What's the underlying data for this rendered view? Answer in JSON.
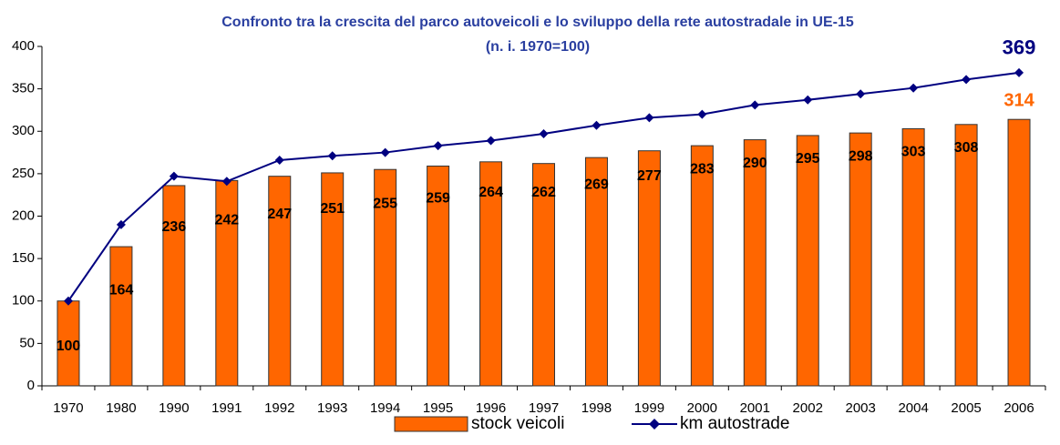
{
  "chart_data": {
    "type": "bar-line",
    "title": "Confronto tra la crescita del parco autoveicoli e lo sviluppo della rete autostradale in UE-15",
    "subtitle": "(n. i. 1970=100)",
    "categories": [
      "1970",
      "1980",
      "1990",
      "1991",
      "1992",
      "1993",
      "1994",
      "1995",
      "1996",
      "1997",
      "1998",
      "1999",
      "2000",
      "2001",
      "2002",
      "2003",
      "2004",
      "2005",
      "2006"
    ],
    "series": [
      {
        "name": "stock veicoli",
        "type": "bar",
        "color": "#ff6600",
        "values": [
          100,
          164,
          236,
          242,
          247,
          251,
          255,
          259,
          264,
          262,
          269,
          277,
          283,
          290,
          295,
          298,
          303,
          308,
          314
        ]
      },
      {
        "name": "km autostrade",
        "type": "line",
        "color": "#000080",
        "values": [
          100,
          190,
          247,
          241,
          266,
          271,
          275,
          283,
          289,
          297,
          307,
          316,
          320,
          331,
          337,
          344,
          351,
          361,
          369
        ]
      }
    ],
    "ylim": [
      0,
      400
    ],
    "yticks": [
      0,
      50,
      100,
      150,
      200,
      250,
      300,
      350,
      400
    ],
    "legend": "bottom"
  }
}
